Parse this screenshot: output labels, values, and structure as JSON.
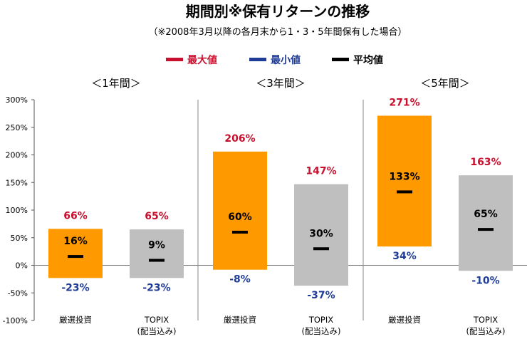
{
  "chart_data": {
    "type": "bar",
    "title": "期間別※保有リターンの推移",
    "subtitle": "（※2008年3月以降の各月末から1・3・5年間保有した場合）",
    "legend": [
      {
        "label": "最大値",
        "color": "#c8102e"
      },
      {
        "label": "最小値",
        "color": "#1f3c96"
      },
      {
        "label": "平均値",
        "color": "#000000"
      }
    ],
    "yticks": [
      "300%",
      "250%",
      "200%",
      "150%",
      "100%",
      "50%",
      "0%",
      "-50%",
      "-100%"
    ],
    "ylim": [
      -100,
      300
    ],
    "groups": [
      {
        "period": "＜1年間＞",
        "bars": [
          {
            "label": "厳選投資",
            "label2": "",
            "max": 66,
            "min": -23,
            "avg": 16,
            "max_label": "66%",
            "min_label": "-23%",
            "avg_label": "16%",
            "color": "#ff9900"
          },
          {
            "label": "TOPIX",
            "label2": "(配当込み)",
            "max": 65,
            "min": -23,
            "avg": 9,
            "max_label": "65%",
            "min_label": "-23%",
            "avg_label": "9%",
            "color": "#bfbfbf"
          }
        ]
      },
      {
        "period": "＜3年間＞",
        "bars": [
          {
            "label": "厳選投資",
            "label2": "",
            "max": 206,
            "min": -8,
            "avg": 60,
            "max_label": "206%",
            "min_label": "-8%",
            "avg_label": "60%",
            "color": "#ff9900"
          },
          {
            "label": "TOPIX",
            "label2": "(配当込み)",
            "max": 147,
            "min": -37,
            "avg": 30,
            "max_label": "147%",
            "min_label": "-37%",
            "avg_label": "30%",
            "color": "#bfbfbf"
          }
        ]
      },
      {
        "period": "＜5年間＞",
        "bars": [
          {
            "label": "厳選投資",
            "label2": "",
            "max": 271,
            "min": 34,
            "avg": 133,
            "max_label": "271%",
            "min_label": "34%",
            "avg_label": "133%",
            "color": "#ff9900"
          },
          {
            "label": "TOPIX",
            "label2": "(配当込み)",
            "max": 163,
            "min": -10,
            "avg": 65,
            "max_label": "163%",
            "min_label": "-10%",
            "avg_label": "65%",
            "color": "#bfbfbf"
          }
        ]
      }
    ]
  }
}
